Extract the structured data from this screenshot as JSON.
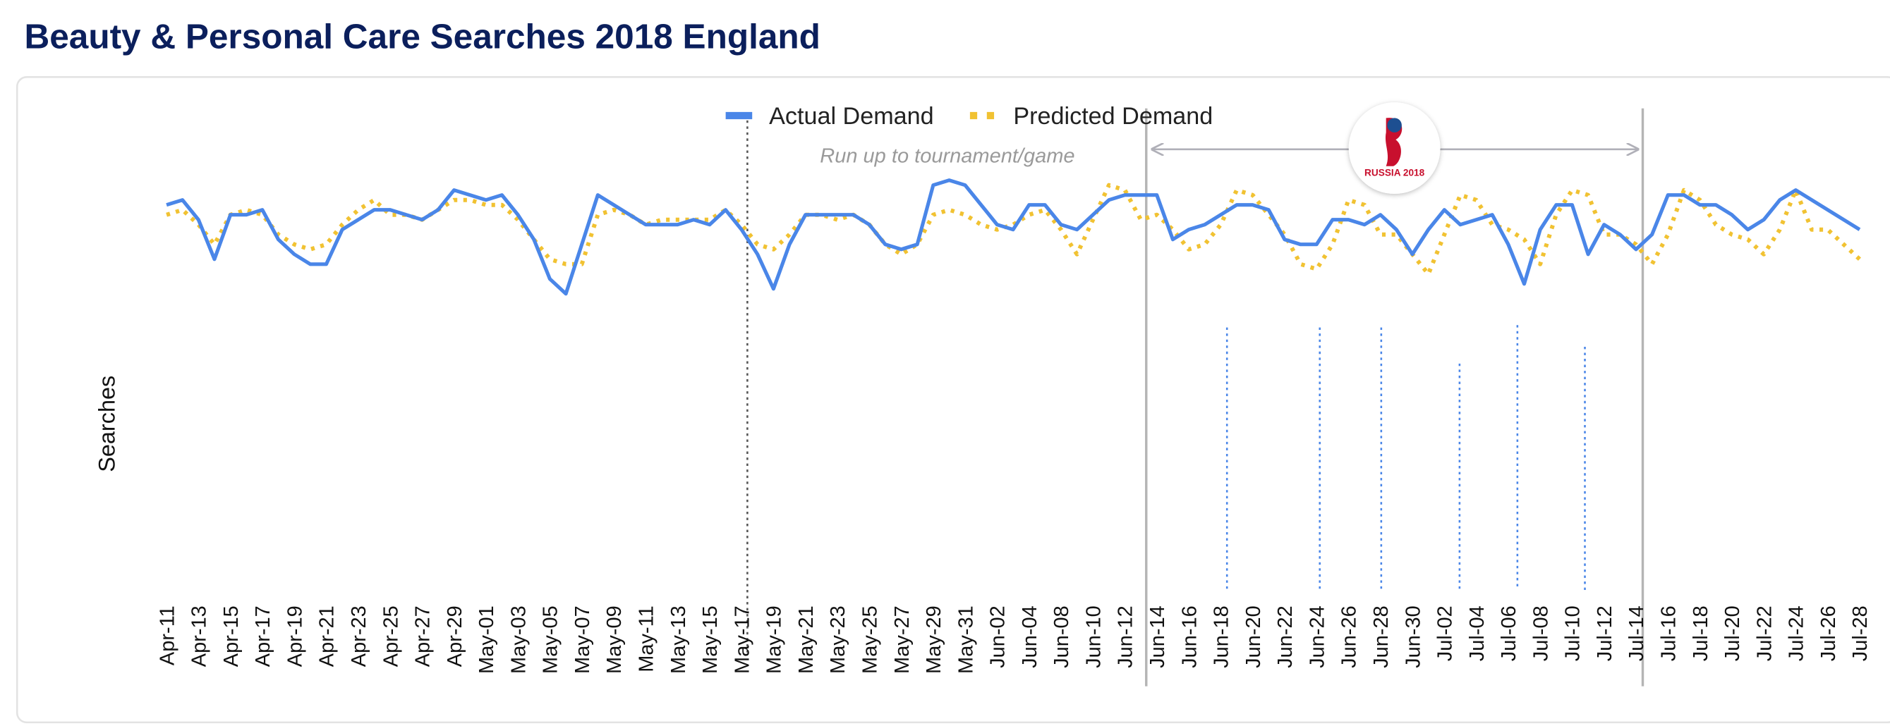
{
  "chart_data": {
    "type": "line",
    "title": "Beauty & Personal Care Searches 2018 England",
    "ylabel": "Searches",
    "annotation": "Run up to tournament/game",
    "logo_text": "RUSSIA 2018",
    "ylim": [
      0,
      100
    ],
    "categories": [
      "Apr-11",
      null,
      "Apr-13",
      null,
      "Apr-15",
      null,
      "Apr-17",
      null,
      "Apr-19",
      null,
      "Apr-21",
      null,
      "Apr-23",
      null,
      "Apr-25",
      null,
      "Apr-27",
      null,
      "Apr-29",
      null,
      "May-01",
      null,
      "May-03",
      null,
      "May-05",
      null,
      "May-07",
      null,
      "May-09",
      null,
      "May-11",
      null,
      "May-13",
      null,
      "May-15",
      null,
      "May-17",
      null,
      "May-19",
      null,
      "May-21",
      null,
      "May-23",
      null,
      "May-25",
      null,
      "May-27",
      null,
      "May-29",
      null,
      "May-31",
      null,
      "Jun-02",
      null,
      "Jun-04",
      null,
      "Jun-08",
      null,
      "Jun-10",
      null,
      "Jun-12",
      null,
      "Jun-14",
      null,
      "Jun-16",
      null,
      "Jun-18",
      null,
      "Jun-20",
      null,
      "Jun-22",
      null,
      "Jun-24",
      null,
      "Jun-26",
      null,
      "Jun-28",
      null,
      "Jun-30",
      null,
      "Jul-02",
      null,
      "Jul-04",
      null,
      "Jul-06",
      null,
      "Jul-08",
      null,
      "Jul-10",
      null,
      "Jul-12",
      null,
      "Jul-14",
      null,
      "Jul-16",
      null,
      "Jul-18",
      null,
      "Jul-20",
      null,
      "Jul-22",
      null,
      "Jul-24",
      null,
      "Jul-26",
      null,
      "Jul-28"
    ],
    "series": [
      {
        "name": "Actual Demand",
        "color": "#4a86e8",
        "style": "solid",
        "values": [
          78,
          79,
          75,
          67,
          76,
          76,
          77,
          71,
          68,
          66,
          66,
          73,
          75,
          77,
          77,
          76,
          75,
          77,
          81,
          80,
          79,
          80,
          76,
          71,
          63,
          60,
          70,
          80,
          78,
          76,
          74,
          74,
          74,
          75,
          74,
          77,
          73,
          68,
          61,
          70,
          76,
          76,
          76,
          76,
          74,
          70,
          69,
          70,
          82,
          83,
          82,
          78,
          74,
          73,
          78,
          78,
          74,
          73,
          76,
          79,
          80,
          80,
          80,
          71,
          73,
          74,
          76,
          78,
          78,
          77,
          71,
          70,
          70,
          75,
          75,
          74,
          76,
          73,
          68,
          73,
          77,
          74,
          75,
          76,
          70,
          62,
          73,
          78,
          78,
          68,
          74,
          72,
          69,
          72,
          80,
          80,
          78,
          78,
          76,
          73,
          75,
          79,
          81,
          79,
          77,
          75,
          73
        ]
      },
      {
        "name": "Predicted Demand",
        "color": "#f1c232",
        "style": "dotted",
        "values": [
          76,
          77,
          74,
          70,
          76,
          77,
          76,
          72,
          70,
          69,
          70,
          74,
          77,
          79,
          76,
          76,
          75,
          77,
          79,
          79,
          78,
          78,
          75,
          71,
          67,
          66,
          66,
          76,
          77,
          76,
          74,
          75,
          75,
          75,
          75,
          77,
          74,
          70,
          69,
          72,
          76,
          76,
          75,
          76,
          74,
          70,
          68,
          70,
          76,
          77,
          76,
          74,
          73,
          74,
          76,
          77,
          73,
          68,
          75,
          82,
          81,
          75,
          76,
          73,
          69,
          70,
          74,
          81,
          80,
          76,
          72,
          66,
          65,
          70,
          79,
          78,
          72,
          72,
          68,
          64,
          72,
          80,
          79,
          74,
          73,
          71,
          66,
          76,
          81,
          80,
          72,
          72,
          70,
          66,
          72,
          81,
          79,
          74,
          72,
          71,
          68,
          73,
          81,
          73,
          73,
          70,
          67
        ]
      }
    ]
  }
}
